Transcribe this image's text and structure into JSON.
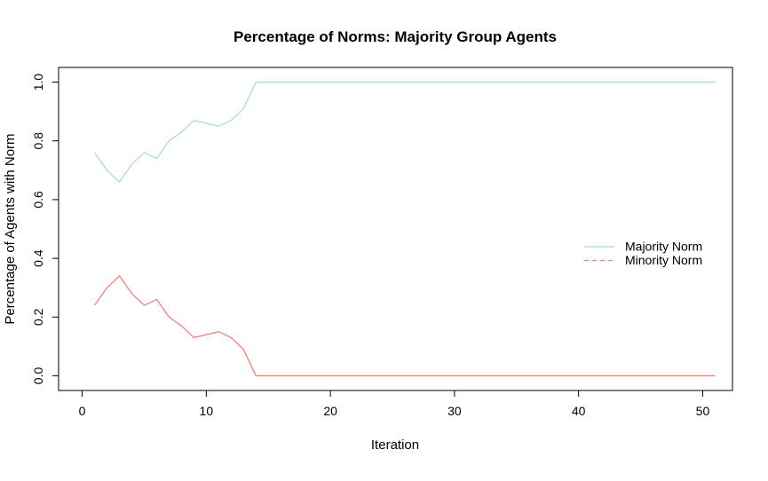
{
  "chart_data": {
    "type": "line",
    "title": "Percentage of Norms: Majority Group Agents",
    "xlabel": "Iteration",
    "ylabel": "Percentage of Agents with Norm",
    "grid": false,
    "legend_position": "right",
    "xlim": [
      -1.9,
      52.4
    ],
    "ylim": [
      -0.05,
      1.05
    ],
    "x_ticks": [
      "0",
      "10",
      "20",
      "30",
      "40",
      "50"
    ],
    "x_tick_values": [
      0,
      10,
      20,
      30,
      40,
      50
    ],
    "y_ticks": [
      "0.0",
      "0.2",
      "0.4",
      "0.6",
      "0.8",
      "1.0"
    ],
    "y_tick_values": [
      0,
      0.2,
      0.4,
      0.6,
      0.8,
      1.0
    ],
    "x": [
      1,
      2,
      3,
      4,
      5,
      6,
      7,
      8,
      9,
      10,
      11,
      12,
      13,
      14,
      15,
      16,
      17,
      18,
      19,
      20,
      21,
      22,
      23,
      24,
      25,
      26,
      27,
      28,
      29,
      30,
      31,
      32,
      33,
      34,
      35,
      36,
      37,
      38,
      39,
      40,
      41,
      42,
      43,
      44,
      45,
      46,
      47,
      48,
      49,
      50,
      51
    ],
    "series": [
      {
        "name": "Majority Norm",
        "color": "#ADD8E6",
        "line_style": "solid",
        "legend_style": "solid",
        "values": [
          0.76,
          0.7,
          0.66,
          0.72,
          0.76,
          0.74,
          0.8,
          0.83,
          0.87,
          0.86,
          0.85,
          0.87,
          0.91,
          1.0,
          1.0,
          1.0,
          1.0,
          1.0,
          1.0,
          1.0,
          1.0,
          1.0,
          1.0,
          1.0,
          1.0,
          1.0,
          1.0,
          1.0,
          1.0,
          1.0,
          1.0,
          1.0,
          1.0,
          1.0,
          1.0,
          1.0,
          1.0,
          1.0,
          1.0,
          1.0,
          1.0,
          1.0,
          1.0,
          1.0,
          1.0,
          1.0,
          1.0,
          1.0,
          1.0,
          1.0,
          1.0
        ]
      },
      {
        "name": "Minority Norm",
        "color": "#F08080",
        "line_style": "solid",
        "legend_style": "dashed",
        "values": [
          0.24,
          0.3,
          0.34,
          0.28,
          0.24,
          0.26,
          0.2,
          0.17,
          0.13,
          0.14,
          0.15,
          0.13,
          0.09,
          0.0,
          0.0,
          0.0,
          0.0,
          0.0,
          0.0,
          0.0,
          0.0,
          0.0,
          0.0,
          0.0,
          0.0,
          0.0,
          0.0,
          0.0,
          0.0,
          0.0,
          0.0,
          0.0,
          0.0,
          0.0,
          0.0,
          0.0,
          0.0,
          0.0,
          0.0,
          0.0,
          0.0,
          0.0,
          0.0,
          0.0,
          0.0,
          0.0,
          0.0,
          0.0,
          0.0,
          0.0,
          0.0
        ]
      }
    ]
  }
}
